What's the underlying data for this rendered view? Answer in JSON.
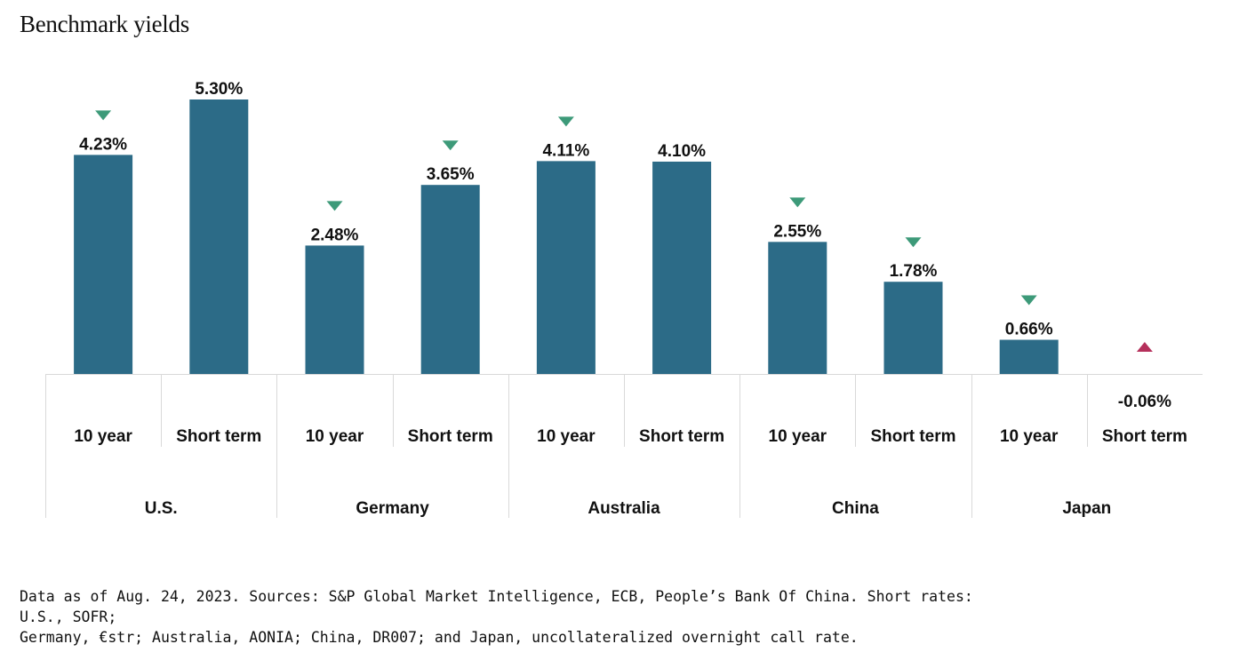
{
  "chart_data": {
    "type": "bar",
    "title": "Benchmark yields",
    "series_color": "#2c6b87",
    "down_color": "#3d9a79",
    "up_color": "#b5305b",
    "groups": [
      {
        "name": "U.S.",
        "bars": [
          {
            "label": "10 year",
            "value": 4.23,
            "display": "4.23%",
            "trend": "down"
          },
          {
            "label": "Short term",
            "value": 5.3,
            "display": "5.30%",
            "trend": "none"
          }
        ]
      },
      {
        "name": "Germany",
        "bars": [
          {
            "label": "10 year",
            "value": 2.48,
            "display": "2.48%",
            "trend": "down"
          },
          {
            "label": "Short term",
            "value": 3.65,
            "display": "3.65%",
            "trend": "down"
          }
        ]
      },
      {
        "name": "Australia",
        "bars": [
          {
            "label": "10 year",
            "value": 4.11,
            "display": "4.11%",
            "trend": "down"
          },
          {
            "label": "Short term",
            "value": 4.1,
            "display": "4.10%",
            "trend": "none"
          }
        ]
      },
      {
        "name": "China",
        "bars": [
          {
            "label": "10 year",
            "value": 2.55,
            "display": "2.55%",
            "trend": "down"
          },
          {
            "label": "Short term",
            "value": 1.78,
            "display": "1.78%",
            "trend": "down"
          }
        ]
      },
      {
        "name": "Japan",
        "bars": [
          {
            "label": "10 year",
            "value": 0.66,
            "display": "0.66%",
            "trend": "down"
          },
          {
            "label": "Short term",
            "value": -0.06,
            "display": "-0.06%",
            "trend": "up"
          }
        ]
      }
    ],
    "ylim": [
      0,
      5.3
    ]
  },
  "footnote": {
    "line1": "Data as of Aug. 24, 2023. Sources: S&P Global Market Intelligence, ECB, People’s Bank Of China. Short rates: U.S., SOFR;",
    "line2": "Germany, €str; Australia, AONIA; China, DR007; and Japan, uncollateralized overnight call rate."
  }
}
